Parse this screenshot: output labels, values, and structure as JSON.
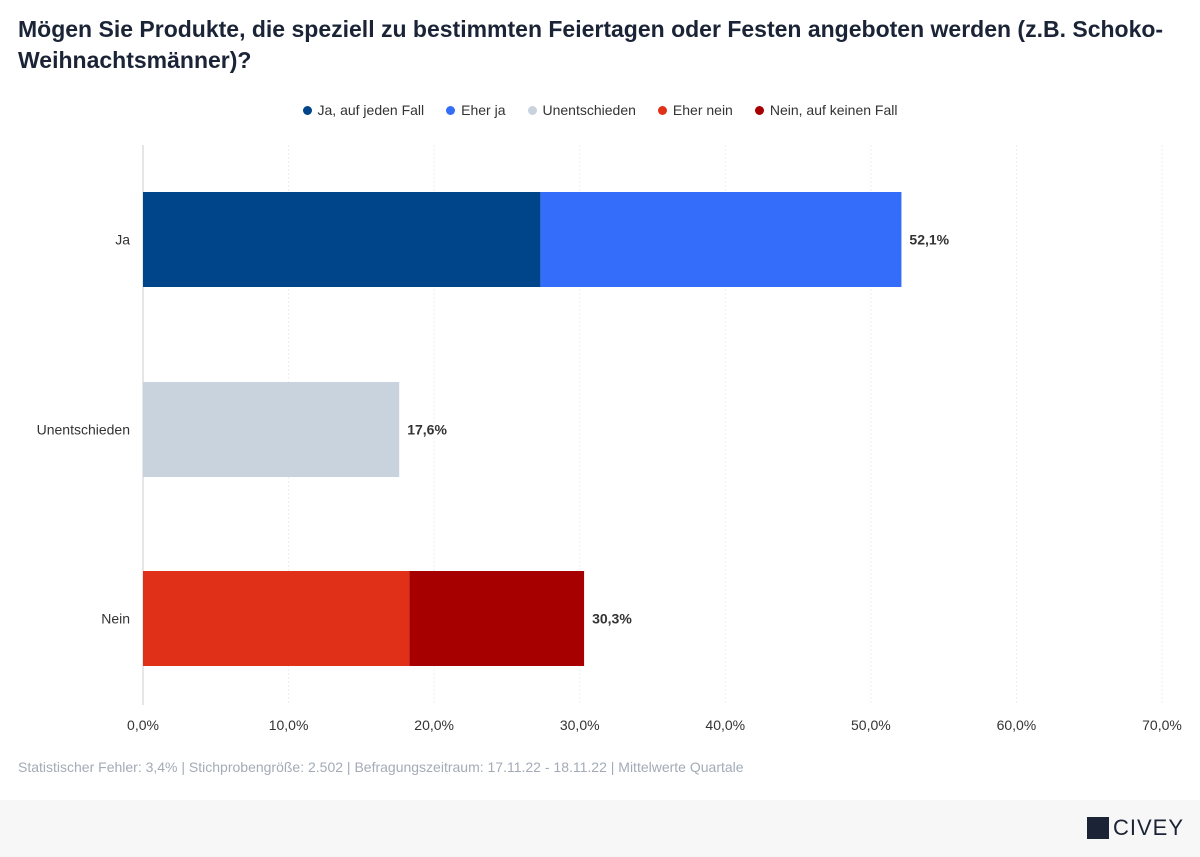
{
  "chart_data": {
    "type": "bar",
    "orientation": "horizontal",
    "stacked": true,
    "title": "Mögen Sie Produkte, die speziell zu bestimmten Feiertagen oder Festen angeboten werden (z.B. Schoko-Weihnachtsmänner)?",
    "categories": [
      "Ja",
      "Unentschieden",
      "Nein"
    ],
    "series": [
      {
        "name": "Ja, auf jeden Fall",
        "color": "#004489",
        "values": [
          27.3,
          0,
          0
        ]
      },
      {
        "name": "Eher ja",
        "color": "#336dfa",
        "values": [
          24.8,
          0,
          0
        ]
      },
      {
        "name": "Unentschieden",
        "color": "#c9d3de",
        "values": [
          0,
          17.6,
          0
        ]
      },
      {
        "name": "Eher nein",
        "color": "#e03118",
        "values": [
          0,
          0,
          18.3
        ]
      },
      {
        "name": "Nein, auf keinen Fall",
        "color": "#a60000",
        "values": [
          0,
          0,
          12.0
        ]
      }
    ],
    "totals_labels": [
      "52,1%",
      "17,6%",
      "30,3%"
    ],
    "xlim": [
      0,
      70
    ],
    "xticks": [
      "0,0%",
      "10,0%",
      "20,0%",
      "30,0%",
      "40,0%",
      "50,0%",
      "60,0%",
      "70,0%"
    ],
    "grid": true,
    "legend_position": "top"
  },
  "footer": "Statistischer Fehler: 3,4% | Stichprobengröße: 2.502 | Befragungszeitraum: 17.11.22 - 18.11.22 | Mittelwerte Quartale",
  "logo": "CIVEY"
}
